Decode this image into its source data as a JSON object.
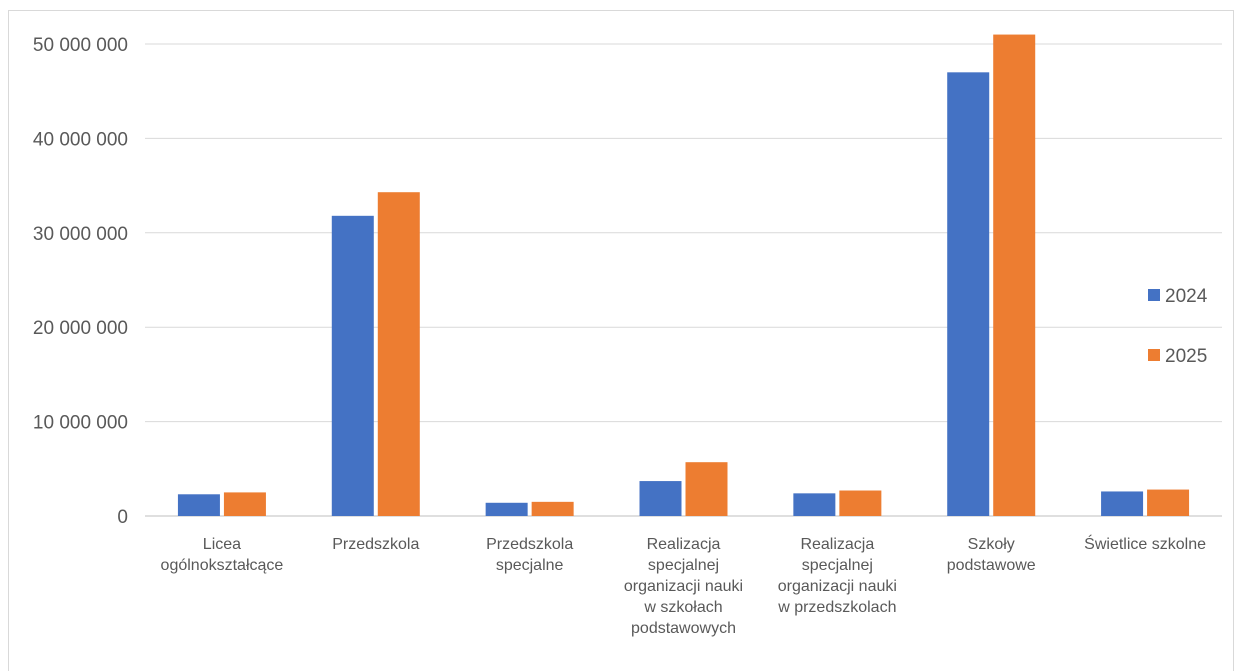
{
  "chart_data": {
    "type": "bar",
    "title": "",
    "xlabel": "",
    "ylabel": "",
    "ylim": [
      0,
      50000000
    ],
    "yticks": [
      0,
      10000000,
      20000000,
      30000000,
      40000000,
      50000000
    ],
    "ytick_labels": [
      "0",
      "10 000 000",
      "20 000 000",
      "30 000 000",
      "40 000 000",
      "50 000 000"
    ],
    "grid": true,
    "legend_position": "right",
    "categories": [
      [
        "Licea",
        "ogólnokształcące"
      ],
      [
        "Przedszkola"
      ],
      [
        "Przedszkola",
        "specjalne"
      ],
      [
        "Realizacja",
        "specjalnej",
        "organizacji nauki",
        "w szkołach",
        "podstawowych"
      ],
      [
        "Realizacja",
        "specjalnej",
        "organizacji nauki",
        "w przedszkolach"
      ],
      [
        "Szkoły",
        "podstawowe"
      ],
      [
        "Świetlice szkolne"
      ]
    ],
    "series": [
      {
        "name": "2024",
        "color": "#4472C4",
        "values": [
          2300000,
          31800000,
          1400000,
          3700000,
          2400000,
          47000000,
          2600000
        ]
      },
      {
        "name": "2025",
        "color": "#ED7D31",
        "values": [
          2500000,
          34300000,
          1500000,
          5700000,
          2700000,
          51000000,
          2800000
        ]
      }
    ]
  }
}
